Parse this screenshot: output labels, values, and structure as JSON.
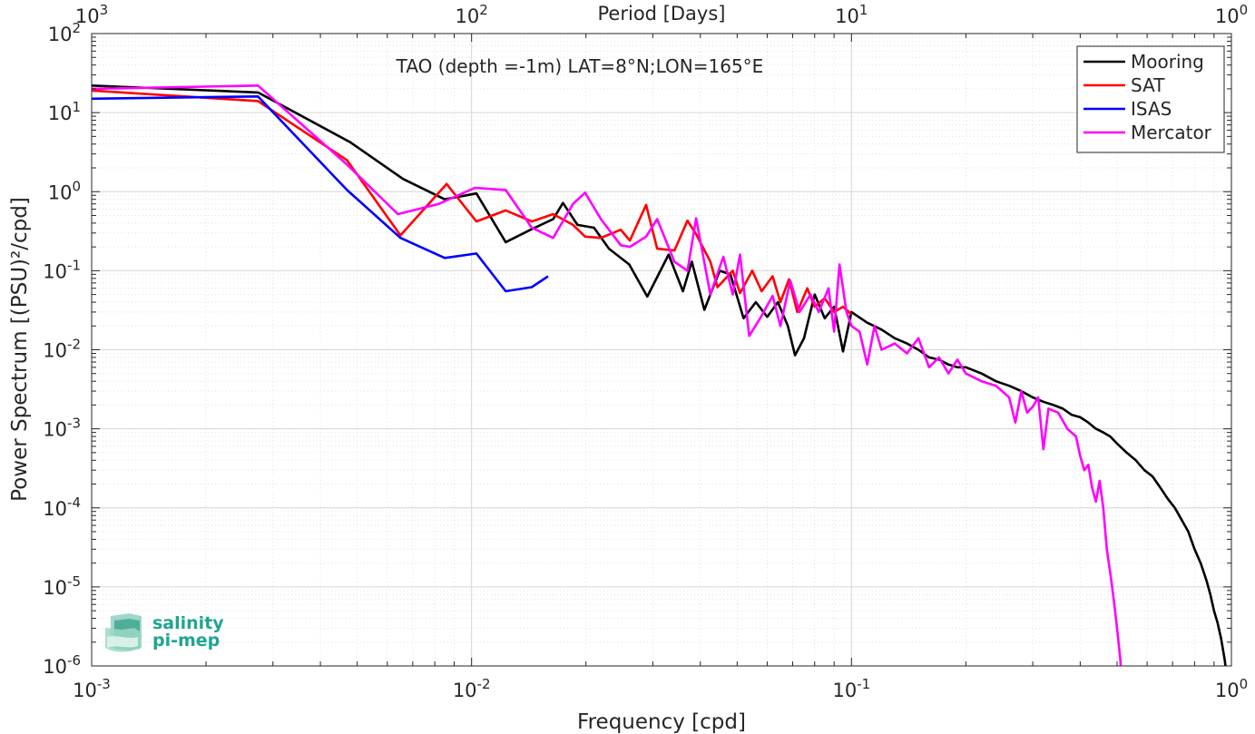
{
  "chart_data": {
    "type": "line",
    "title": "TAO (depth =-1m) LAT=8°N;LON=165°E",
    "xlabel": "Frequency [cpd]",
    "ylabel": "Power Spectrum [(PSU)²/cpd]",
    "top_xlabel": "Period [Days]",
    "xscale": "log",
    "yscale": "log",
    "xlim": [
      0.001,
      1
    ],
    "ylim": [
      1e-06,
      100
    ],
    "grid": true,
    "legend_position": "top-right",
    "x_ticks": [
      {
        "v": 0.001,
        "b": "10",
        "e": "-3"
      },
      {
        "v": 0.01,
        "b": "10",
        "e": "-2"
      },
      {
        "v": 0.1,
        "b": "10",
        "e": "-1"
      },
      {
        "v": 1,
        "b": "10",
        "e": "0"
      }
    ],
    "top_ticks": [
      {
        "v": 0.001,
        "b": "10",
        "e": "3"
      },
      {
        "v": 0.01,
        "b": "10",
        "e": "2"
      },
      {
        "v": 0.1,
        "b": "10",
        "e": "1"
      },
      {
        "v": 1,
        "b": "10",
        "e": "0"
      }
    ],
    "y_ticks": [
      {
        "v": 100,
        "b": "10",
        "e": "2"
      },
      {
        "v": 10,
        "b": "10",
        "e": "1"
      },
      {
        "v": 1,
        "b": "10",
        "e": "0"
      },
      {
        "v": 0.1,
        "b": "10",
        "e": "-1"
      },
      {
        "v": 0.01,
        "b": "10",
        "e": "-2"
      },
      {
        "v": 0.001,
        "b": "10",
        "e": "-3"
      },
      {
        "v": 0.0001,
        "b": "10",
        "e": "-4"
      },
      {
        "v": 1e-05,
        "b": "10",
        "e": "-5"
      },
      {
        "v": 1e-06,
        "b": "10",
        "e": "-6"
      }
    ],
    "series": [
      {
        "name": "Mooring",
        "color": "#000000",
        "points": [
          [
            0.001,
            22
          ],
          [
            0.00274,
            18
          ],
          [
            0.0048,
            4.2
          ],
          [
            0.0066,
            1.45
          ],
          [
            0.0085,
            0.8
          ],
          [
            0.0103,
            0.95
          ],
          [
            0.0123,
            0.23
          ],
          [
            0.0143,
            0.33
          ],
          [
            0.0164,
            0.45
          ],
          [
            0.0174,
            0.72
          ],
          [
            0.019,
            0.38
          ],
          [
            0.021,
            0.35
          ],
          [
            0.023,
            0.19
          ],
          [
            0.026,
            0.12
          ],
          [
            0.029,
            0.047
          ],
          [
            0.033,
            0.16
          ],
          [
            0.036,
            0.055
          ],
          [
            0.038,
            0.13
          ],
          [
            0.041,
            0.032
          ],
          [
            0.045,
            0.1
          ],
          [
            0.048,
            0.09
          ],
          [
            0.052,
            0.025
          ],
          [
            0.056,
            0.04
          ],
          [
            0.06,
            0.026
          ],
          [
            0.064,
            0.04
          ],
          [
            0.068,
            0.02
          ],
          [
            0.071,
            0.0085
          ],
          [
            0.075,
            0.014
          ],
          [
            0.08,
            0.05
          ],
          [
            0.085,
            0.025
          ],
          [
            0.09,
            0.035
          ],
          [
            0.095,
            0.0095
          ],
          [
            0.1,
            0.03
          ],
          [
            0.11,
            0.022
          ],
          [
            0.12,
            0.018
          ],
          [
            0.13,
            0.014
          ],
          [
            0.14,
            0.012
          ],
          [
            0.15,
            0.01
          ],
          [
            0.16,
            0.008
          ],
          [
            0.17,
            0.0075
          ],
          [
            0.18,
            0.0065
          ],
          [
            0.19,
            0.006
          ],
          [
            0.2,
            0.006
          ],
          [
            0.22,
            0.005
          ],
          [
            0.24,
            0.004
          ],
          [
            0.26,
            0.0035
          ],
          [
            0.28,
            0.003
          ],
          [
            0.3,
            0.0025
          ],
          [
            0.32,
            0.0022
          ],
          [
            0.34,
            0.002
          ],
          [
            0.36,
            0.0018
          ],
          [
            0.38,
            0.0015
          ],
          [
            0.4,
            0.0014
          ],
          [
            0.42,
            0.0012
          ],
          [
            0.44,
            0.001
          ],
          [
            0.46,
            0.0009
          ],
          [
            0.48,
            0.0008
          ],
          [
            0.5,
            0.00065
          ],
          [
            0.53,
            0.0005
          ],
          [
            0.56,
            0.0004
          ],
          [
            0.59,
            0.0003
          ],
          [
            0.62,
            0.00025
          ],
          [
            0.65,
            0.00018
          ],
          [
            0.68,
            0.00013
          ],
          [
            0.71,
            0.0001
          ],
          [
            0.74,
            7e-05
          ],
          [
            0.77,
            5e-05
          ],
          [
            0.8,
            3e-05
          ],
          [
            0.83,
            2e-05
          ],
          [
            0.86,
            1.2e-05
          ],
          [
            0.88,
            8e-06
          ],
          [
            0.9,
            5e-06
          ],
          [
            0.92,
            3.5e-06
          ],
          [
            0.94,
            2.2e-06
          ],
          [
            0.96,
            1.2e-06
          ],
          [
            0.97,
            8e-07
          ]
        ]
      },
      {
        "name": "SAT",
        "color": "#ff0000",
        "points": [
          [
            0.001,
            19
          ],
          [
            0.00274,
            14
          ],
          [
            0.0047,
            2.5
          ],
          [
            0.0065,
            0.28
          ],
          [
            0.0086,
            1.25
          ],
          [
            0.0103,
            0.42
          ],
          [
            0.0123,
            0.58
          ],
          [
            0.0144,
            0.42
          ],
          [
            0.0164,
            0.52
          ],
          [
            0.0185,
            0.38
          ],
          [
            0.0199,
            0.27
          ],
          [
            0.0219,
            0.26
          ],
          [
            0.0247,
            0.33
          ],
          [
            0.0261,
            0.24
          ],
          [
            0.0288,
            0.68
          ],
          [
            0.0308,
            0.19
          ],
          [
            0.0342,
            0.18
          ],
          [
            0.037,
            0.43
          ],
          [
            0.039,
            0.29
          ],
          [
            0.0425,
            0.13
          ],
          [
            0.0444,
            0.062
          ],
          [
            0.0487,
            0.1
          ],
          [
            0.0509,
            0.052
          ],
          [
            0.0548,
            0.1
          ],
          [
            0.058,
            0.055
          ],
          [
            0.062,
            0.085
          ],
          [
            0.065,
            0.04
          ],
          [
            0.0685,
            0.078
          ],
          [
            0.072,
            0.03
          ],
          [
            0.0765,
            0.06
          ],
          [
            0.08,
            0.035
          ],
          [
            0.085,
            0.045
          ],
          [
            0.09,
            0.03
          ],
          [
            0.095,
            0.035
          ],
          [
            0.1,
            0.028
          ]
        ]
      },
      {
        "name": "ISAS",
        "color": "#0000ff",
        "points": [
          [
            0.001,
            15
          ],
          [
            0.00274,
            16
          ],
          [
            0.0047,
            1.05
          ],
          [
            0.0065,
            0.26
          ],
          [
            0.0085,
            0.145
          ],
          [
            0.0103,
            0.165
          ],
          [
            0.0123,
            0.055
          ],
          [
            0.0144,
            0.062
          ],
          [
            0.0159,
            0.085
          ]
        ]
      },
      {
        "name": "Mercator",
        "color": "#ff00ff",
        "points": [
          [
            0.001,
            20
          ],
          [
            0.00274,
            22
          ],
          [
            0.0047,
            2.2
          ],
          [
            0.0064,
            0.52
          ],
          [
            0.0082,
            0.7
          ],
          [
            0.0102,
            1.12
          ],
          [
            0.0123,
            1.05
          ],
          [
            0.0144,
            0.35
          ],
          [
            0.0164,
            0.26
          ],
          [
            0.0185,
            0.7
          ],
          [
            0.0199,
            0.97
          ],
          [
            0.0219,
            0.45
          ],
          [
            0.0247,
            0.21
          ],
          [
            0.0261,
            0.2
          ],
          [
            0.0288,
            0.27
          ],
          [
            0.0308,
            0.45
          ],
          [
            0.0342,
            0.13
          ],
          [
            0.037,
            0.1
          ],
          [
            0.039,
            0.46
          ],
          [
            0.0425,
            0.05
          ],
          [
            0.046,
            0.15
          ],
          [
            0.0487,
            0.05
          ],
          [
            0.0509,
            0.16
          ],
          [
            0.0538,
            0.015
          ],
          [
            0.0575,
            0.025
          ],
          [
            0.062,
            0.048
          ],
          [
            0.065,
            0.02
          ],
          [
            0.069,
            0.075
          ],
          [
            0.073,
            0.03
          ],
          [
            0.078,
            0.05
          ],
          [
            0.082,
            0.03
          ],
          [
            0.087,
            0.06
          ],
          [
            0.09,
            0.017
          ],
          [
            0.093,
            0.12
          ],
          [
            0.097,
            0.03
          ],
          [
            0.1,
            0.02
          ],
          [
            0.105,
            0.017
          ],
          [
            0.11,
            0.0065
          ],
          [
            0.115,
            0.02
          ],
          [
            0.12,
            0.01
          ],
          [
            0.13,
            0.012
          ],
          [
            0.14,
            0.009
          ],
          [
            0.15,
            0.014
          ],
          [
            0.16,
            0.006
          ],
          [
            0.17,
            0.008
          ],
          [
            0.18,
            0.005
          ],
          [
            0.19,
            0.0075
          ],
          [
            0.2,
            0.005
          ],
          [
            0.22,
            0.004
          ],
          [
            0.24,
            0.0035
          ],
          [
            0.26,
            0.0025
          ],
          [
            0.27,
            0.0012
          ],
          [
            0.28,
            0.003
          ],
          [
            0.29,
            0.0016
          ],
          [
            0.3,
            0.0019
          ],
          [
            0.31,
            0.0025
          ],
          [
            0.32,
            0.00055
          ],
          [
            0.33,
            0.0018
          ],
          [
            0.35,
            0.0016
          ],
          [
            0.37,
            0.001
          ],
          [
            0.39,
            0.0008
          ],
          [
            0.4,
            0.00045
          ],
          [
            0.41,
            0.0003
          ],
          [
            0.42,
            0.00035
          ],
          [
            0.43,
            0.00018
          ],
          [
            0.44,
            0.00012
          ],
          [
            0.45,
            0.00022
          ],
          [
            0.46,
            0.0001
          ],
          [
            0.47,
            3e-05
          ],
          [
            0.48,
            1.5e-05
          ],
          [
            0.49,
            7e-06
          ],
          [
            0.5,
            3e-06
          ],
          [
            0.51,
            1.2e-06
          ],
          [
            0.515,
            6e-07
          ]
        ]
      }
    ]
  },
  "logo": {
    "line1": "salinity",
    "line2": "pi-mep",
    "color": "#1fa58e"
  }
}
